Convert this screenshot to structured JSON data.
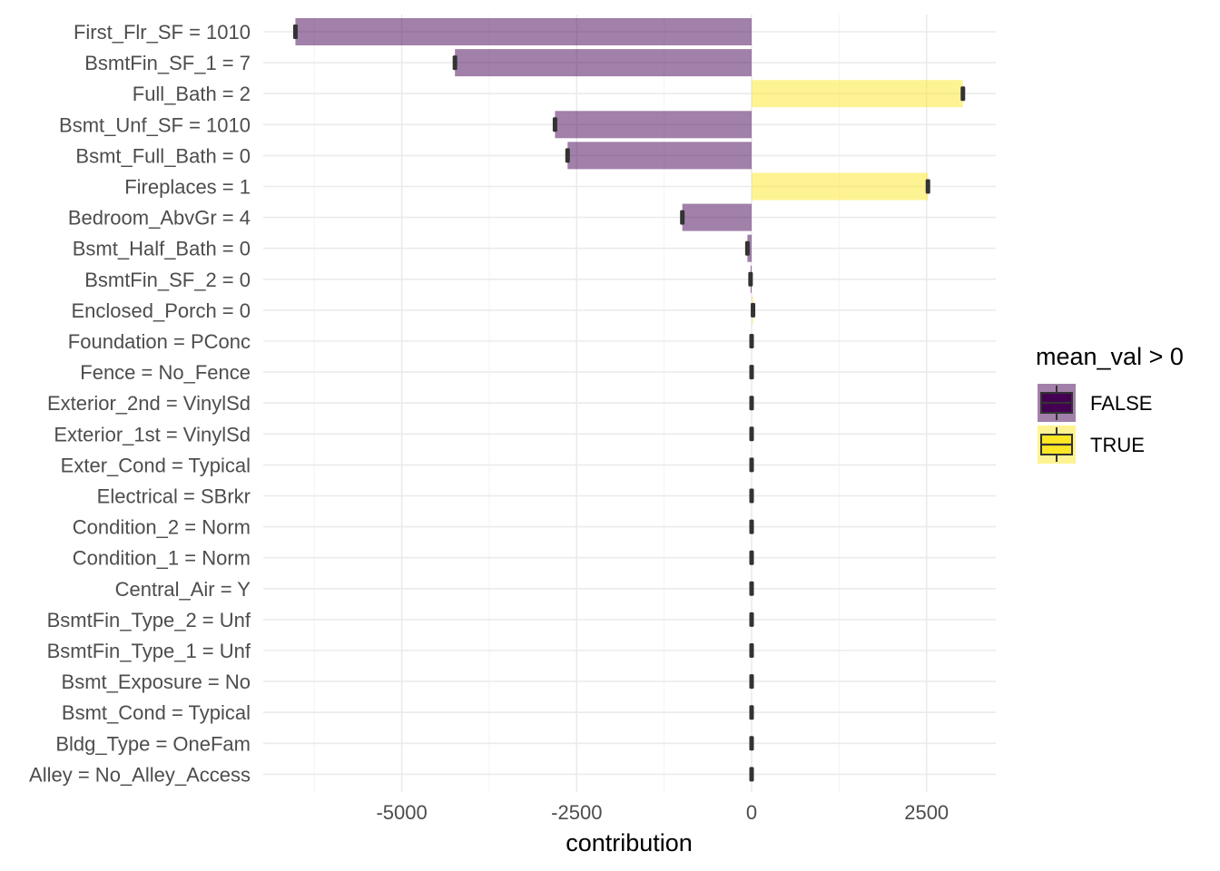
{
  "chart_data": {
    "type": "bar",
    "orientation": "horizontal",
    "xlabel": "contribution",
    "ylabel": "",
    "xlim": [
      -7050,
      3500
    ],
    "x_ticks": [
      -5000,
      -2500,
      0,
      2500
    ],
    "x_tick_labels": [
      "-5000",
      "-2500",
      "0",
      "2500"
    ],
    "grid": true,
    "legend": {
      "title": "mean_val > 0",
      "position": "right",
      "entries": [
        {
          "label": "FALSE",
          "color": "#440154"
        },
        {
          "label": "TRUE",
          "color": "#FDE725"
        }
      ]
    },
    "categories": [
      "First_Flr_SF = 1010",
      "BsmtFin_SF_1 = 7",
      "Full_Bath = 2",
      "Bsmt_Unf_SF = 1010",
      "Bsmt_Full_Bath = 0",
      "Fireplaces = 1",
      "Bedroom_AbvGr = 4",
      "Bsmt_Half_Bath = 0",
      "BsmtFin_SF_2 = 0",
      "Enclosed_Porch = 0",
      "Foundation = PConc",
      "Fence = No_Fence",
      "Exterior_2nd = VinylSd",
      "Exterior_1st = VinylSd",
      "Exter_Cond = Typical",
      "Electrical = SBrkr",
      "Condition_2 = Norm",
      "Condition_1 = Norm",
      "Central_Air = Y",
      "BsmtFin_Type_2 = Unf",
      "BsmtFin_Type_1 = Unf",
      "Bsmt_Exposure = No",
      "Bsmt_Cond = Typical",
      "Bldg_Type = OneFam",
      "Alley = No_Alley_Access"
    ],
    "values": [
      -6520,
      -4240,
      3020,
      -2810,
      -2630,
      2520,
      -990,
      -60,
      -15,
      20,
      0,
      0,
      0,
      0,
      0,
      0,
      0,
      0,
      0,
      0,
      0,
      0,
      0,
      0,
      0
    ],
    "positive": [
      false,
      false,
      true,
      false,
      false,
      true,
      false,
      false,
      false,
      true,
      false,
      false,
      false,
      false,
      false,
      false,
      false,
      false,
      false,
      false,
      false,
      false,
      false,
      false,
      false
    ]
  }
}
